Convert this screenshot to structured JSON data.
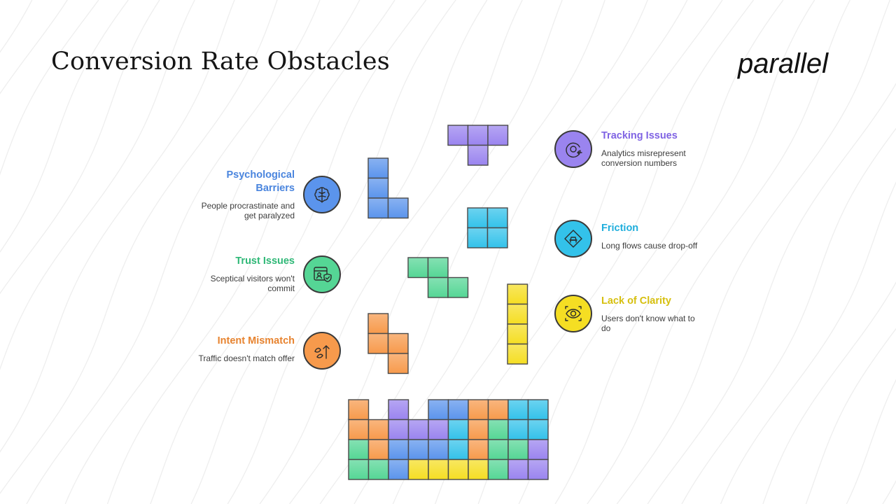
{
  "slide": {
    "title": "Conversion Rate Obstacles"
  },
  "brand": {
    "name": "parallel"
  },
  "colors": {
    "orange": "#f79a4c",
    "purple": "#9a84ef",
    "blue": "#5b94ec",
    "cyan": "#33c2ea",
    "green": "#55d695",
    "yellow": "#f5de23"
  },
  "obstacles": [
    {
      "title": "Psychological Barriers",
      "desc": "People procrastinate and get paralyzed",
      "color": "#4a85de",
      "icon": "brain-icon"
    },
    {
      "title": "Trust Issues",
      "desc": "Sceptical visitors won't commit",
      "color": "#2fb877",
      "icon": "shield-check-icon"
    },
    {
      "title": "Intent Mismatch",
      "desc": "Traffic doesn't match offer",
      "color": "#e7832f",
      "icon": "split-arrow-icon"
    },
    {
      "title": "Tracking Issues",
      "desc": "Analytics misrepresent conversion numbers",
      "color": "#7f63e3",
      "icon": "tracking-target-icon"
    },
    {
      "title": "Friction",
      "desc": "Long flows cause drop-off",
      "color": "#1faedc",
      "icon": "road-sign-icon"
    },
    {
      "title": "Lack of Clarity",
      "desc": "Users don't know what to do",
      "color": "#d6bf0e",
      "icon": "eye-icon"
    }
  ]
}
